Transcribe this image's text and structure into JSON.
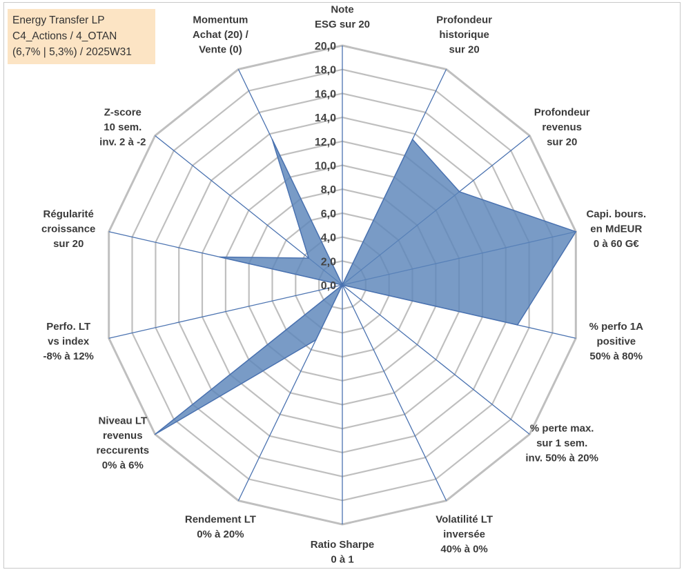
{
  "title_box": {
    "line1": "Energy Transfer  LP",
    "line2": "C4_Actions / 4_OTAN",
    "line3": "(6,7% | 5,3%) / 2025W31"
  },
  "colors": {
    "fill": "#5b85b9",
    "stroke": "#4a72b0",
    "grid": "#bfbfbf",
    "spoke": "#4a72b0",
    "title_bg": "#fce4c4"
  },
  "chart_data": {
    "type": "radar",
    "rlim": [
      0,
      20
    ],
    "tick_labels": [
      "0,0",
      "2,0",
      "4,0",
      "6,0",
      "8,0",
      "10,0",
      "12,0",
      "14,0",
      "16,0",
      "18,0",
      "20,0"
    ],
    "axes": [
      {
        "label": [
          "Note",
          "ESG sur 20"
        ],
        "value": 0
      },
      {
        "label": [
          "Profondeur",
          "historique",
          "sur 20"
        ],
        "value": 13.5
      },
      {
        "label": [
          "Profondeur",
          "revenus",
          "sur 20"
        ],
        "value": 12.5
      },
      {
        "label": [
          "Capi. bours.",
          "en MdEUR",
          "0 à 60 G€"
        ],
        "value": 20
      },
      {
        "label": [
          "% perfo 1A",
          "positive",
          "50% à 80%"
        ],
        "value": 15
      },
      {
        "label": [
          "% perte max.",
          "sur 1 sem.",
          "inv. 50% à 20%"
        ],
        "value": 0
      },
      {
        "label": [
          "Volatilité LT",
          "inversée",
          "40% à 0%"
        ],
        "value": 0
      },
      {
        "label": [
          "Ratio Sharpe",
          "0 à 1"
        ],
        "value": 0
      },
      {
        "label": [
          "Rendement LT",
          "0% à 20%"
        ],
        "value": 5.1
      },
      {
        "label": [
          "Niveau LT",
          "revenus",
          "reccurents",
          "0% à 6%"
        ],
        "value": 20
      },
      {
        "label": [
          "Perfo. LT",
          "vs index",
          "-8% à 12%"
        ],
        "value": 0
      },
      {
        "label": [
          "Régularité",
          "croissance",
          "sur 20"
        ],
        "value": 10.5
      },
      {
        "label": [
          "Z-score",
          "10 sem.",
          "inv. 2 à -2"
        ],
        "value": 3.6
      },
      {
        "label": [
          "Momentum",
          "Achat (20) /",
          "Vente (0)"
        ],
        "value": 13.5
      }
    ]
  }
}
